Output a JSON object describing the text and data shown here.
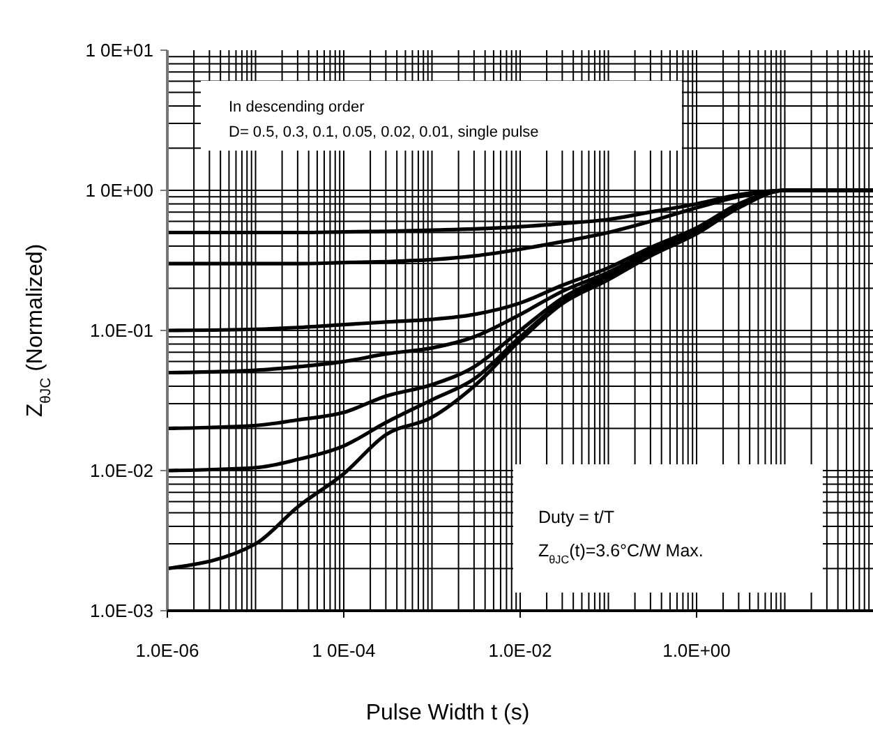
{
  "chart_data": {
    "type": "line",
    "xlabel": "Pulse Width t (s)",
    "ylabel": "Z$_{θJC}$ (Normalized)",
    "log": "xy",
    "grid": true,
    "marker": "none",
    "line_style": "solid",
    "xlim": [
      1e-06,
      100
    ],
    "ylim": [
      0.001,
      10
    ],
    "xticks": [
      {
        "value": 1e-06,
        "label": "1.0E-06"
      },
      {
        "value": 0.0001,
        "label": "1 0E-04"
      },
      {
        "value": 0.01,
        "label": "1.0E-02"
      },
      {
        "value": 1,
        "label": "1.0E+00"
      }
    ],
    "yticks": [
      {
        "value": 0.001,
        "label": "1.0E-03"
      },
      {
        "value": 0.01,
        "label": "1.0E-02"
      },
      {
        "value": 0.1,
        "label": "1.0E-01"
      },
      {
        "value": 1,
        "label": "1 0E+00"
      },
      {
        "value": 10,
        "label": "1 0E+01"
      }
    ],
    "x": [
      1e-06,
      1e-05,
      3e-05,
      0.0001,
      0.0003,
      0.001,
      0.003,
      0.01,
      0.03,
      0.1,
      0.3,
      1,
      3,
      10,
      100
    ],
    "series": [
      {
        "color": "#000000",
        "values": [
          0.5,
          0.5,
          0.5,
          0.505,
          0.51,
          0.52,
          0.53,
          0.55,
          0.58,
          0.62,
          0.7,
          0.8,
          0.93,
          1,
          1
        ]
      },
      {
        "color": "#000000",
        "values": [
          0.3,
          0.3,
          0.3,
          0.305,
          0.31,
          0.32,
          0.34,
          0.38,
          0.43,
          0.5,
          0.6,
          0.75,
          0.9,
          1,
          1
        ]
      },
      {
        "color": "#000000",
        "values": [
          0.1,
          0.102,
          0.105,
          0.11,
          0.115,
          0.12,
          0.13,
          0.157,
          0.21,
          0.28,
          0.39,
          0.54,
          0.8,
          1,
          1
        ]
      },
      {
        "color": "#000000",
        "values": [
          0.05,
          0.052,
          0.055,
          0.06,
          0.068,
          0.075,
          0.09,
          0.13,
          0.19,
          0.26,
          0.37,
          0.52,
          0.78,
          1,
          1
        ]
      },
      {
        "color": "#000000",
        "values": [
          0.02,
          0.021,
          0.023,
          0.026,
          0.034,
          0.041,
          0.055,
          0.1,
          0.17,
          0.25,
          0.36,
          0.5,
          0.77,
          1,
          1
        ]
      },
      {
        "color": "#000000",
        "values": [
          0.01,
          0.0105,
          0.012,
          0.015,
          0.022,
          0.032,
          0.045,
          0.09,
          0.16,
          0.24,
          0.35,
          0.5,
          0.76,
          1,
          1
        ]
      },
      {
        "color": "#000000",
        "values": [
          0.002,
          0.003,
          0.0055,
          0.0095,
          0.018,
          0.024,
          0.04,
          0.085,
          0.155,
          0.23,
          0.34,
          0.49,
          0.75,
          1,
          1
        ]
      }
    ],
    "annotations": [
      "In descending order",
      "D= 0.5, 0.3, 0.1, 0.05, 0.02, 0.01, single pulse",
      "Duty = t/T",
      "Z$_{θJC}$(t)=3.6°C/W Max."
    ]
  }
}
